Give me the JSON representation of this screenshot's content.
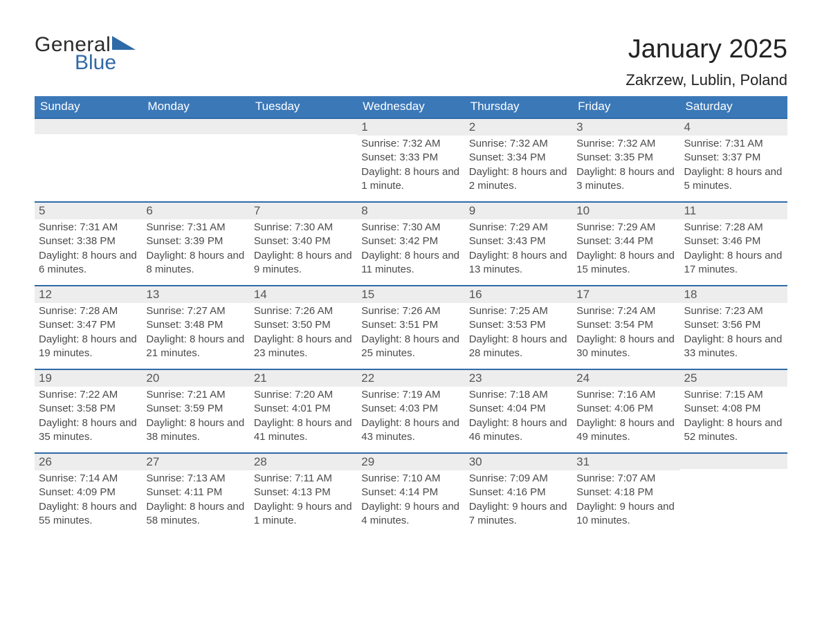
{
  "brand": {
    "part1": "General",
    "part2": "Blue"
  },
  "header": {
    "title": "January 2025",
    "location": "Zakrzew, Lublin, Poland"
  },
  "colors": {
    "header_bg": "#3b78b8",
    "accent_line": "#2f6aa8",
    "row_bg": "#ededed",
    "page_bg": "#ffffff",
    "logo_dark": "#2b2b2b",
    "logo_blue": "#2f6aa8"
  },
  "weekdays": [
    "Sunday",
    "Monday",
    "Tuesday",
    "Wednesday",
    "Thursday",
    "Friday",
    "Saturday"
  ],
  "labels": {
    "sunrise": "Sunrise",
    "sunset": "Sunset",
    "daylight": "Daylight"
  },
  "weeks": [
    [
      null,
      null,
      null,
      {
        "day": 1,
        "sunrise": "7:32 AM",
        "sunset": "3:33 PM",
        "daylight": "8 hours and 1 minute."
      },
      {
        "day": 2,
        "sunrise": "7:32 AM",
        "sunset": "3:34 PM",
        "daylight": "8 hours and 2 minutes."
      },
      {
        "day": 3,
        "sunrise": "7:32 AM",
        "sunset": "3:35 PM",
        "daylight": "8 hours and 3 minutes."
      },
      {
        "day": 4,
        "sunrise": "7:31 AM",
        "sunset": "3:37 PM",
        "daylight": "8 hours and 5 minutes."
      }
    ],
    [
      {
        "day": 5,
        "sunrise": "7:31 AM",
        "sunset": "3:38 PM",
        "daylight": "8 hours and 6 minutes."
      },
      {
        "day": 6,
        "sunrise": "7:31 AM",
        "sunset": "3:39 PM",
        "daylight": "8 hours and 8 minutes."
      },
      {
        "day": 7,
        "sunrise": "7:30 AM",
        "sunset": "3:40 PM",
        "daylight": "8 hours and 9 minutes."
      },
      {
        "day": 8,
        "sunrise": "7:30 AM",
        "sunset": "3:42 PM",
        "daylight": "8 hours and 11 minutes."
      },
      {
        "day": 9,
        "sunrise": "7:29 AM",
        "sunset": "3:43 PM",
        "daylight": "8 hours and 13 minutes."
      },
      {
        "day": 10,
        "sunrise": "7:29 AM",
        "sunset": "3:44 PM",
        "daylight": "8 hours and 15 minutes."
      },
      {
        "day": 11,
        "sunrise": "7:28 AM",
        "sunset": "3:46 PM",
        "daylight": "8 hours and 17 minutes."
      }
    ],
    [
      {
        "day": 12,
        "sunrise": "7:28 AM",
        "sunset": "3:47 PM",
        "daylight": "8 hours and 19 minutes."
      },
      {
        "day": 13,
        "sunrise": "7:27 AM",
        "sunset": "3:48 PM",
        "daylight": "8 hours and 21 minutes."
      },
      {
        "day": 14,
        "sunrise": "7:26 AM",
        "sunset": "3:50 PM",
        "daylight": "8 hours and 23 minutes."
      },
      {
        "day": 15,
        "sunrise": "7:26 AM",
        "sunset": "3:51 PM",
        "daylight": "8 hours and 25 minutes."
      },
      {
        "day": 16,
        "sunrise": "7:25 AM",
        "sunset": "3:53 PM",
        "daylight": "8 hours and 28 minutes."
      },
      {
        "day": 17,
        "sunrise": "7:24 AM",
        "sunset": "3:54 PM",
        "daylight": "8 hours and 30 minutes."
      },
      {
        "day": 18,
        "sunrise": "7:23 AM",
        "sunset": "3:56 PM",
        "daylight": "8 hours and 33 minutes."
      }
    ],
    [
      {
        "day": 19,
        "sunrise": "7:22 AM",
        "sunset": "3:58 PM",
        "daylight": "8 hours and 35 minutes."
      },
      {
        "day": 20,
        "sunrise": "7:21 AM",
        "sunset": "3:59 PM",
        "daylight": "8 hours and 38 minutes."
      },
      {
        "day": 21,
        "sunrise": "7:20 AM",
        "sunset": "4:01 PM",
        "daylight": "8 hours and 41 minutes."
      },
      {
        "day": 22,
        "sunrise": "7:19 AM",
        "sunset": "4:03 PM",
        "daylight": "8 hours and 43 minutes."
      },
      {
        "day": 23,
        "sunrise": "7:18 AM",
        "sunset": "4:04 PM",
        "daylight": "8 hours and 46 minutes."
      },
      {
        "day": 24,
        "sunrise": "7:16 AM",
        "sunset": "4:06 PM",
        "daylight": "8 hours and 49 minutes."
      },
      {
        "day": 25,
        "sunrise": "7:15 AM",
        "sunset": "4:08 PM",
        "daylight": "8 hours and 52 minutes."
      }
    ],
    [
      {
        "day": 26,
        "sunrise": "7:14 AM",
        "sunset": "4:09 PM",
        "daylight": "8 hours and 55 minutes."
      },
      {
        "day": 27,
        "sunrise": "7:13 AM",
        "sunset": "4:11 PM",
        "daylight": "8 hours and 58 minutes."
      },
      {
        "day": 28,
        "sunrise": "7:11 AM",
        "sunset": "4:13 PM",
        "daylight": "9 hours and 1 minute."
      },
      {
        "day": 29,
        "sunrise": "7:10 AM",
        "sunset": "4:14 PM",
        "daylight": "9 hours and 4 minutes."
      },
      {
        "day": 30,
        "sunrise": "7:09 AM",
        "sunset": "4:16 PM",
        "daylight": "9 hours and 7 minutes."
      },
      {
        "day": 31,
        "sunrise": "7:07 AM",
        "sunset": "4:18 PM",
        "daylight": "9 hours and 10 minutes."
      },
      null
    ]
  ]
}
